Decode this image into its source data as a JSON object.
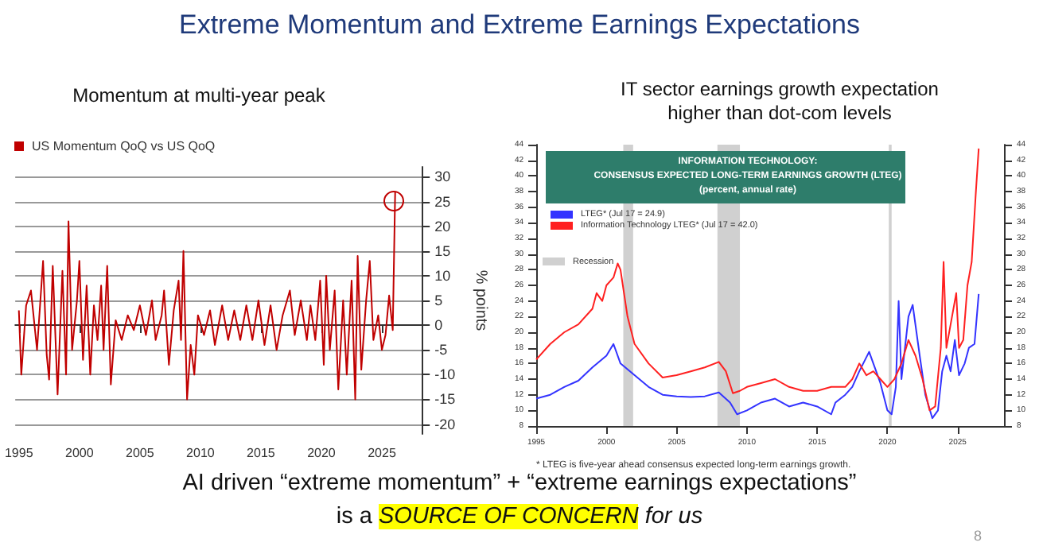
{
  "chart_data": [
    {
      "type": "line",
      "title": "Momentum at multi-year peak",
      "ylabel": "% points",
      "legend": "top left",
      "grid": "y",
      "marker": "none",
      "tick_labels": "xy",
      "xlim": [
        1994.7,
        2028.3
      ],
      "xticks": [
        1995,
        2000,
        2005,
        2010,
        2015,
        2020,
        2025
      ],
      "ylim": [
        -22,
        32
      ],
      "yticks": [
        -20,
        -15,
        -10,
        -5,
        0,
        5,
        10,
        15,
        20,
        25,
        30
      ],
      "series": [
        {
          "name": "US Momentum QoQ vs US QoQ",
          "color": "#c00000",
          "x": [
            1995,
            1995.2,
            1995.6,
            1996,
            1996.5,
            1997,
            1997.3,
            1997.5,
            1997.8,
            1998.2,
            1998.6,
            1998.9,
            1999.1,
            1999.4,
            1999.8,
            2000,
            2000.3,
            2000.6,
            2000.9,
            2001.2,
            2001.5,
            2001.8,
            2002,
            2002.3,
            2002.6,
            2003,
            2003.5,
            2004,
            2004.5,
            2005,
            2005.5,
            2006,
            2006.3,
            2006.8,
            2007,
            2007.4,
            2007.8,
            2008.2,
            2008.4,
            2008.6,
            2008.9,
            2009.2,
            2009.5,
            2009.8,
            2010.3,
            2010.8,
            2011.2,
            2011.8,
            2012.3,
            2012.8,
            2013.3,
            2013.8,
            2014.3,
            2014.8,
            2015.3,
            2015.8,
            2016.3,
            2016.8,
            2017.4,
            2017.8,
            2018.3,
            2018.8,
            2019.1,
            2019.5,
            2019.9,
            2020.2,
            2020.4,
            2020.7,
            2021.1,
            2021.4,
            2021.8,
            2022.1,
            2022.5,
            2022.8,
            2023,
            2023.3,
            2023.7,
            2024,
            2024.3,
            2024.7,
            2025,
            2025.3,
            2025.6,
            2025.9,
            2026.1
          ],
          "values": [
            3,
            -10,
            4,
            7,
            -5,
            13,
            -6,
            -11,
            12,
            -14,
            11,
            -10,
            21,
            -5,
            5,
            13,
            -7,
            8,
            -10,
            4,
            -3,
            8,
            -5,
            12,
            -12,
            1,
            -3,
            2,
            -1,
            4,
            -2,
            5,
            -3,
            2,
            7,
            -8,
            3,
            9,
            -3,
            15,
            -15,
            -4,
            -10,
            2,
            -2,
            3,
            -4,
            4,
            -3,
            3,
            -3,
            4,
            -3,
            5,
            -4,
            4,
            -5,
            2,
            7,
            -2,
            5,
            -3,
            4,
            -3,
            9,
            -8,
            10,
            -5,
            7,
            -13,
            5,
            -10,
            9,
            -15,
            14,
            -9,
            5,
            13,
            -3,
            2,
            -5,
            -2,
            6,
            -1,
            27
          ]
        }
      ]
    },
    {
      "type": "line",
      "title": "IT sector earnings growth expectation higher than dot-com levels",
      "subtitle": "INFORMATION TECHNOLOGY:\nCONSENSUS EXPECTED LONG-TERM EARNINGS GROWTH (LTEG)\n(percent, annual rate)",
      "legend": "top left",
      "grid": false,
      "marker": "none",
      "annotations": [
        "* LTEG is five-year ahead consensus expected long-term earnings growth."
      ],
      "xlim": [
        1995,
        2028.3
      ],
      "xticks": [
        1995,
        2000,
        2005,
        2010,
        2015,
        2020,
        2025
      ],
      "ylim": [
        8,
        44
      ],
      "yticks": [
        8,
        10,
        12,
        14,
        16,
        18,
        20,
        22,
        24,
        26,
        28,
        30,
        32,
        34,
        36,
        38,
        40,
        42,
        44
      ],
      "y2lim": [
        8,
        44
      ],
      "y2ticks": [
        8,
        10,
        12,
        14,
        16,
        18,
        20,
        22,
        24,
        26,
        28,
        30,
        32,
        34,
        36,
        38,
        40,
        42,
        44
      ],
      "bands": [
        {
          "axis": "x",
          "from": 2001.2,
          "to": 2001.9,
          "label": "Recession",
          "color": "#d0d0d0"
        },
        {
          "axis": "x",
          "from": 2007.9,
          "to": 2009.5,
          "color": "#d0d0d0"
        },
        {
          "axis": "x",
          "from": 2020.1,
          "to": 2020.3,
          "color": "#d0d0d0"
        }
      ],
      "series": [
        {
          "name": "LTEG* (Jul 17 = 24.9)",
          "color": "#3333ff",
          "x": [
            1995,
            1996,
            1997,
            1998,
            1999,
            2000,
            2000.5,
            2001,
            2002,
            2003,
            2004,
            2005,
            2006,
            2007,
            2008,
            2008.8,
            2009.3,
            2010,
            2011,
            2012,
            2013,
            2014,
            2015,
            2016,
            2016.3,
            2017,
            2017.5,
            2018,
            2018.7,
            2019,
            2019.5,
            2020,
            2020.3,
            2020.6,
            2020.8,
            2021,
            2021.5,
            2021.8,
            2022.3,
            2022.7,
            2023.2,
            2023.6,
            2023.9,
            2024.2,
            2024.5,
            2024.8,
            2025.1,
            2025.5,
            2025.8,
            2026.2,
            2026.5
          ],
          "values": [
            11.5,
            12,
            13,
            13.8,
            15.5,
            17,
            18.5,
            16,
            14.5,
            13,
            12,
            11.8,
            11.7,
            11.8,
            12.3,
            11,
            9.5,
            10,
            11,
            11.5,
            10.5,
            11,
            10.5,
            9.5,
            11,
            12,
            13,
            15,
            17.5,
            16,
            13.5,
            10,
            9.5,
            13,
            24,
            14,
            22,
            23.5,
            17,
            12,
            9,
            10,
            15,
            17,
            15,
            19,
            14.5,
            16,
            18,
            18.5,
            24.9
          ]
        },
        {
          "name": "Information Technology LTEG* (Jul 17 = 42.0)",
          "color": "#ff2020",
          "x": [
            1995,
            1996,
            1997,
            1998,
            1999,
            1999.3,
            1999.7,
            2000,
            2000.5,
            2000.8,
            2001,
            2001.5,
            2002,
            2003,
            2004,
            2005,
            2006,
            2007,
            2008,
            2008.5,
            2009,
            2009.5,
            2010,
            2011,
            2012,
            2013,
            2014,
            2015,
            2016,
            2017,
            2017.5,
            2018,
            2018.5,
            2019,
            2019.5,
            2020,
            2020.5,
            2021,
            2021.5,
            2022,
            2022.5,
            2023,
            2023.4,
            2023.8,
            2024,
            2024.2,
            2024.6,
            2024.9,
            2025.1,
            2025.4,
            2025.7,
            2026,
            2026.3,
            2026.5
          ],
          "values": [
            16.5,
            18.5,
            20,
            21,
            23,
            25,
            24,
            26,
            27,
            28.8,
            28,
            22,
            18.5,
            16,
            14.2,
            14.5,
            15,
            15.5,
            16.2,
            15,
            12.2,
            12.5,
            13,
            13.5,
            14,
            13,
            12.5,
            12.5,
            13,
            13,
            14,
            16,
            14.5,
            15,
            14,
            13,
            14,
            16,
            19,
            17,
            14,
            10,
            10.5,
            18,
            29,
            18,
            22,
            25,
            18,
            19,
            26,
            29,
            38,
            43.5
          ]
        }
      ]
    },
    {
      "type": "other",
      "title": "Extreme Momentum and Extreme Earnings Expectations",
      "annotations": [
        "AI driven “extreme momentum” + “extreme earnings expectations”",
        "is a",
        "SOURCE OF CONCERN",
        "for us",
        "8"
      ]
    }
  ]
}
